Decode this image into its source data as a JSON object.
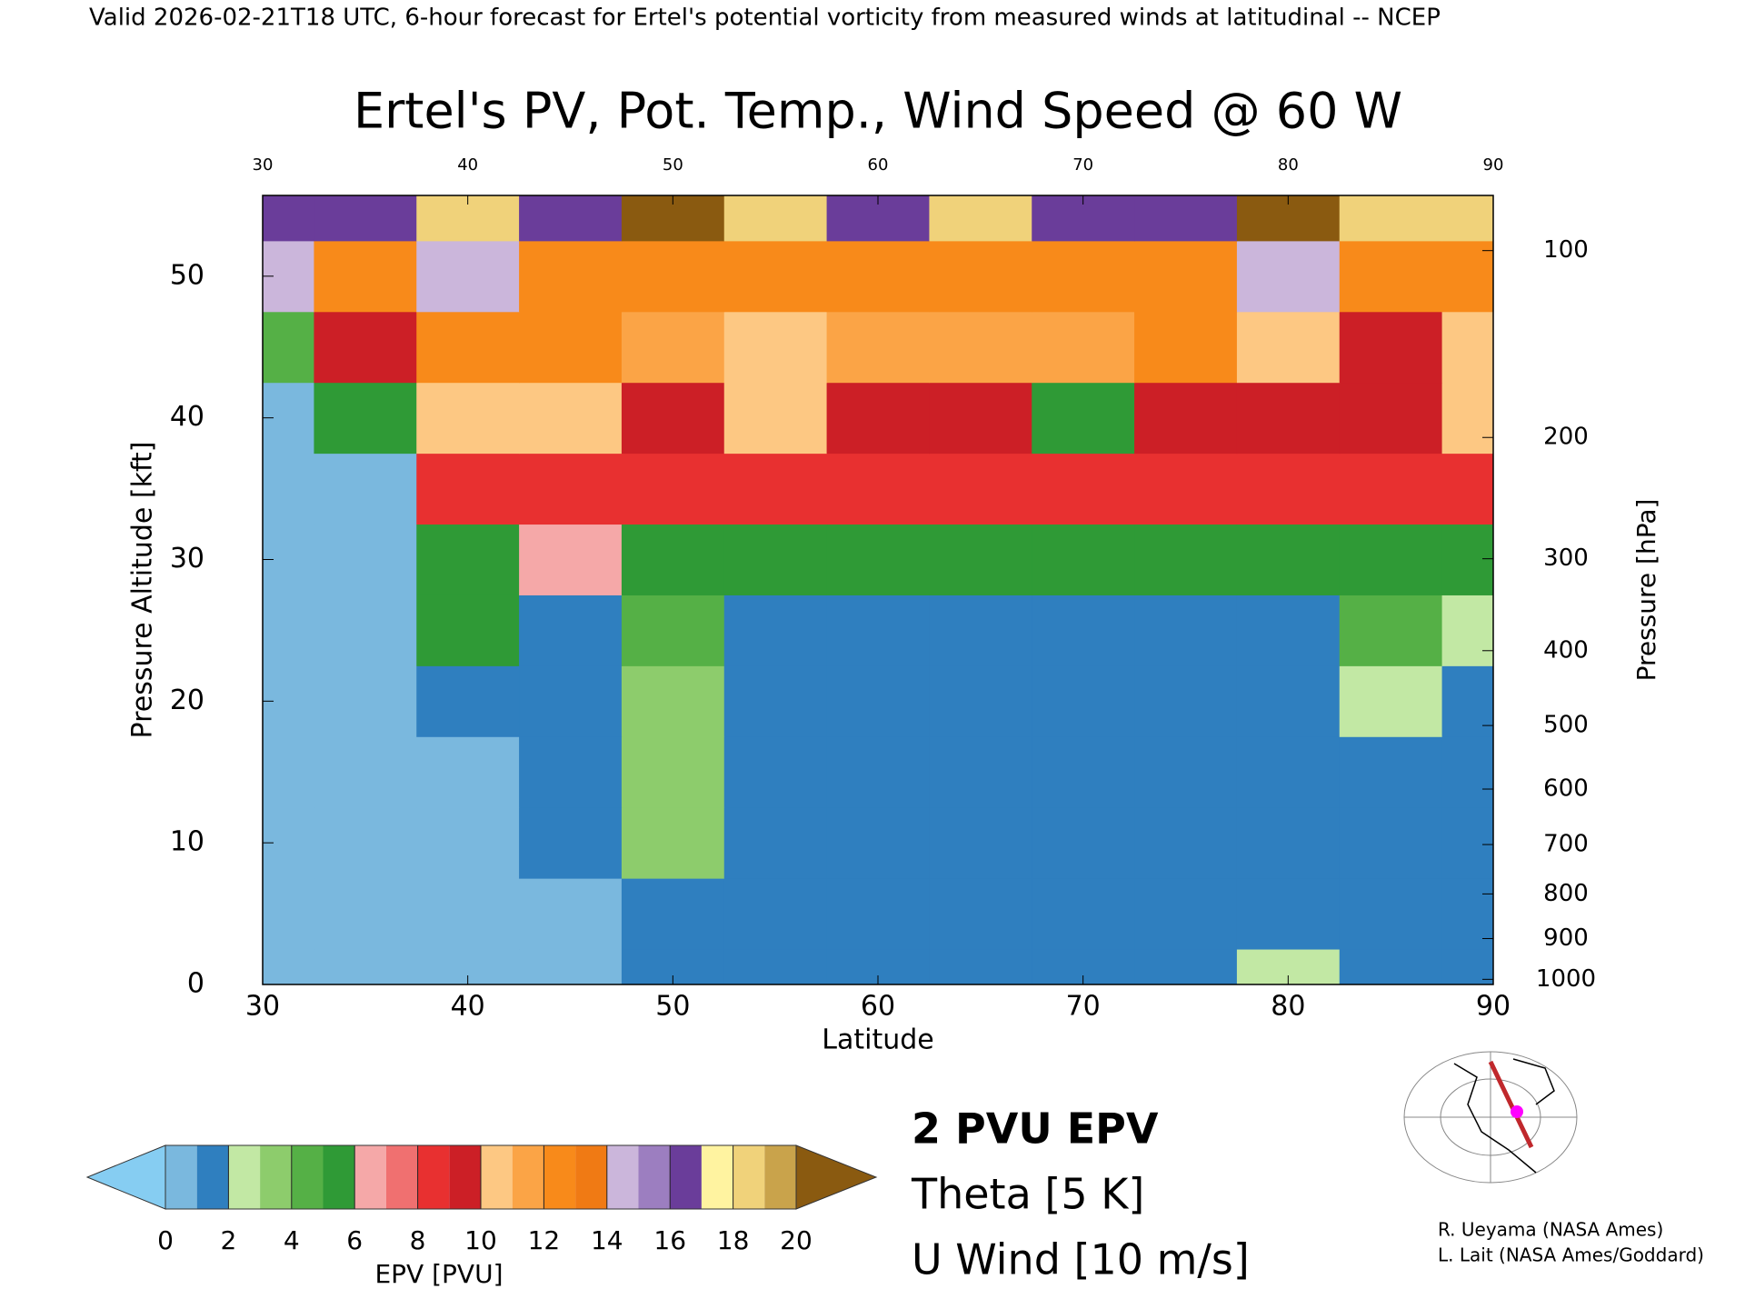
{
  "header": "Valid 2026-02-21T18 UTC, 6-hour forecast for Ertel's potential vorticity from measured winds at latitudinal -- NCEP",
  "chart_data": {
    "type": "heatmap",
    "title": "Ertel's PV, Pot. Temp., Wind Speed @ 60 W",
    "xlabel": "Latitude",
    "ylabel": "Pressure Altitude [kft]",
    "y2label": "Pressure [hPa]",
    "xlim": [
      30,
      90
    ],
    "xticks": [
      30,
      40,
      50,
      60,
      70,
      80,
      90
    ],
    "ylim": [
      0,
      55.7
    ],
    "yticks": [
      0,
      10,
      20,
      30,
      40,
      50
    ],
    "y2scale": "pressure",
    "y2ticks": [
      100,
      200,
      300,
      400,
      500,
      600,
      700,
      800,
      900,
      1000
    ],
    "x": [
      30,
      35,
      40,
      45,
      50,
      55,
      60,
      65,
      70,
      75,
      80,
      85,
      90
    ],
    "y": [
      0,
      5,
      10,
      15,
      20,
      25,
      30,
      35,
      40,
      45,
      50,
      55
    ],
    "values": [
      [
        0.5,
        0.5,
        0.5,
        0.5,
        1,
        1,
        1,
        1,
        1,
        1,
        2,
        1,
        1
      ],
      [
        0.5,
        0.5,
        0.5,
        0.5,
        1,
        1,
        1,
        1,
        1,
        1,
        1,
        1,
        1
      ],
      [
        0.5,
        0.5,
        0.5,
        1,
        3,
        1,
        1,
        1,
        1,
        1,
        1,
        1,
        1
      ],
      [
        0.5,
        0.5,
        0.5,
        1,
        3,
        1,
        1,
        1,
        1,
        1,
        1,
        1,
        1
      ],
      [
        0.5,
        0.5,
        1,
        1,
        3,
        1,
        1,
        1,
        1,
        1,
        1,
        2,
        1
      ],
      [
        0.5,
        0.5,
        5,
        1,
        4,
        1,
        1,
        1,
        1,
        1,
        1,
        4,
        2
      ],
      [
        0.5,
        0.5,
        5,
        6,
        5,
        5,
        5,
        5,
        5,
        5,
        5,
        5,
        5
      ],
      [
        0.5,
        0.5,
        8,
        8,
        8,
        8,
        8,
        8,
        8,
        8,
        8,
        8,
        8
      ],
      [
        0.5,
        5,
        10,
        10,
        9,
        10,
        9,
        9,
        5,
        9,
        9,
        9,
        10
      ],
      [
        4,
        9,
        12,
        12,
        11,
        10,
        11,
        11,
        11,
        12,
        10,
        9,
        10
      ],
      [
        14,
        12,
        14,
        12,
        12,
        12,
        12,
        12,
        12,
        12,
        14,
        12,
        12
      ],
      [
        16,
        16,
        18,
        16,
        20,
        18,
        16,
        18,
        16,
        16,
        20,
        18,
        18
      ]
    ],
    "colorbar": {
      "label": "EPV [PVU]",
      "ticks": [
        0,
        2,
        4,
        6,
        8,
        10,
        12,
        14,
        16,
        18,
        20
      ],
      "bounds": [
        0,
        1,
        2,
        3,
        4,
        5,
        6,
        7,
        8,
        9,
        10,
        11,
        12,
        13,
        14,
        15,
        16,
        17,
        18,
        19,
        20
      ],
      "colors": [
        "#7ab8de",
        "#2f7fbf",
        "#c2e8a4",
        "#8dcc6c",
        "#55b046",
        "#2f9a36",
        "#f5a8a8",
        "#f07070",
        "#e83030",
        "#cc1f26",
        "#fdc883",
        "#fba446",
        "#f88a1a",
        "#f07a14",
        "#cbb6db",
        "#9c7ec0",
        "#6a3d9a",
        "#fff3a0",
        "#f0d27a",
        "#c9a34b"
      ],
      "under": "#86cdf2",
      "over": "#8a5a10"
    },
    "legend": [
      {
        "name": "2 PVU EPV",
        "color": "#ff00ff"
      },
      {
        "name": "Theta [5 K]",
        "color": "#aaaaaa"
      },
      {
        "name": "U Wind [10 m/s]",
        "color": "#000000"
      }
    ]
  },
  "credits": [
    "R. Ueyama (NASA Ames)",
    "L. Lait (NASA Ames/Goddard)"
  ]
}
